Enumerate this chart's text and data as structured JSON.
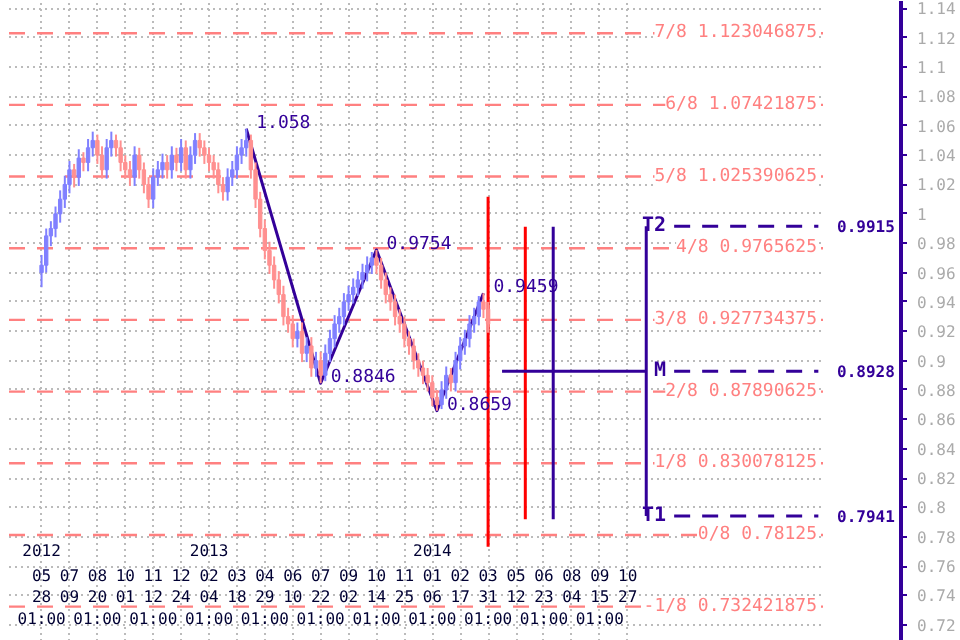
{
  "chart_data": {
    "type": "candlestick",
    "xlim": [
      "2012-04-09",
      "2015-08-17"
    ],
    "x2lim": [
      "2012-04-09",
      "2015-08-17"
    ],
    "ylim": [
      0.709,
      1.145
    ],
    "x2ticks": [
      {
        "value": "2012-05-28T01:00",
        "label": "2012"
      },
      {
        "value": "2013-02-04T01:00",
        "label": "2013"
      },
      {
        "value": "2014-01-06T01:00",
        "label": "2014"
      }
    ],
    "xticks": [
      {
        "value": "2012-05-28T01:00",
        "label": "05\n28\n01:00"
      },
      {
        "value": "2012-07-09T01:00",
        "label": "07\n09"
      },
      {
        "value": "2012-08-20T01:00",
        "label": "08\n20\n01:00"
      },
      {
        "value": "2012-10-01T01:00",
        "label": "10\n01"
      },
      {
        "value": "2012-11-12T01:00",
        "label": "11\n12\n01:00"
      },
      {
        "value": "2012-12-24T01:00",
        "label": "12\n24"
      },
      {
        "value": "2013-02-04T01:00",
        "label": "02\n04\n01:00"
      },
      {
        "value": "2013-03-18T01:00",
        "label": "03\n18"
      },
      {
        "value": "2013-04-29T01:00",
        "label": "04\n29\n01:00"
      },
      {
        "value": "2013-06-10T01:00",
        "label": "06\n10"
      },
      {
        "value": "2013-07-22T01:00",
        "label": "07\n22\n01:00"
      },
      {
        "value": "2013-09-02T01:00",
        "label": "09\n02"
      },
      {
        "value": "2013-10-14T01:00",
        "label": "10\n14\n01:00"
      },
      {
        "value": "2013-11-25T01:00",
        "label": "11\n25"
      },
      {
        "value": "2014-01-06T01:00",
        "label": "01\n06\n01:00"
      },
      {
        "value": "2014-02-17T01:00",
        "label": "02\n17"
      },
      {
        "value": "2014-03-31T01:00",
        "label": "03\n31\n01:00"
      },
      {
        "value": "2014-05-12T01:00",
        "label": "05\n12"
      },
      {
        "value": "2014-06-23T01:00",
        "label": "06\n23\n01:00"
      },
      {
        "value": "2014-08-04T01:00",
        "label": "08\n04"
      },
      {
        "value": "2014-09-15T01:00",
        "label": "09\n15\n01:00"
      },
      {
        "value": "2014-10-27T01:00",
        "label": "10\n27"
      }
    ],
    "yticks": [
      0.72,
      0.74,
      0.76,
      0.78,
      0.8,
      0.82,
      0.84,
      0.86,
      0.88,
      0.9,
      0.92,
      0.94,
      0.96,
      0.98,
      1,
      1.02,
      1.04,
      1.06,
      1.08,
      1.1,
      1.12,
      1.14
    ],
    "grid": true,
    "ref_lines": [
      {
        "axis": "y",
        "value": 1.123046875,
        "label": "7/8 1.123046875",
        "color": "#ff8080",
        "line_style": "dashed"
      },
      {
        "axis": "y",
        "value": 1.07421875,
        "label": "6/8 1.07421875",
        "color": "#ff8080",
        "line_style": "dashed"
      },
      {
        "axis": "y",
        "value": 1.025390625,
        "label": "5/8 1.025390625",
        "color": "#ff8080",
        "line_style": "dashed"
      },
      {
        "axis": "y",
        "value": 0.9765625,
        "label": "4/8 0.9765625",
        "color": "#ff8080",
        "line_style": "dashed"
      },
      {
        "axis": "y",
        "value": 0.927734375,
        "label": "3/8 0.927734375",
        "color": "#ff8080",
        "line_style": "dashed"
      },
      {
        "axis": "y",
        "value": 0.87890625,
        "label": "2/8 0.87890625",
        "color": "#ff8080",
        "line_style": "dashed"
      },
      {
        "axis": "y",
        "value": 0.830078125,
        "label": "1/8 0.830078125",
        "color": "#ff8080",
        "line_style": "dashed"
      },
      {
        "axis": "y",
        "value": 0.78125,
        "label": "0/8 0.78125",
        "color": "#ff8080",
        "line_style": "dashed"
      },
      {
        "axis": "y",
        "value": 0.732421875,
        "label": "-1/8 0.732421875",
        "color": "#ff8080",
        "line_style": "dashed"
      }
    ],
    "x": [
      "2012-05-28",
      "2012-06-04",
      "2012-06-11",
      "2012-06-18",
      "2012-06-25",
      "2012-07-02",
      "2012-07-09",
      "2012-07-16",
      "2012-07-23",
      "2012-07-30",
      "2012-08-06",
      "2012-08-13",
      "2012-08-20",
      "2012-08-27",
      "2012-09-03",
      "2012-09-10",
      "2012-09-17",
      "2012-09-24",
      "2012-10-01",
      "2012-10-08",
      "2012-10-15",
      "2012-10-22",
      "2012-10-29",
      "2012-11-05",
      "2012-11-12",
      "2012-11-19",
      "2012-11-26",
      "2012-12-03",
      "2012-12-10",
      "2012-12-17",
      "2012-12-24",
      "2012-12-31",
      "2013-01-07",
      "2013-01-14",
      "2013-01-21",
      "2013-01-28",
      "2013-02-04",
      "2013-02-11",
      "2013-02-18",
      "2013-02-25",
      "2013-03-04",
      "2013-03-11",
      "2013-03-18",
      "2013-03-25",
      "2013-04-01",
      "2013-04-08",
      "2013-04-15",
      "2013-04-22",
      "2013-04-29",
      "2013-05-06",
      "2013-05-13",
      "2013-05-20",
      "2013-05-27",
      "2013-06-03",
      "2013-06-10",
      "2013-06-17",
      "2013-06-24",
      "2013-07-01",
      "2013-07-08",
      "2013-07-15",
      "2013-07-22",
      "2013-07-29",
      "2013-08-05",
      "2013-08-12",
      "2013-08-19",
      "2013-08-26",
      "2013-09-02",
      "2013-09-09",
      "2013-09-16",
      "2013-09-23",
      "2013-09-30",
      "2013-10-07",
      "2013-10-14",
      "2013-10-21",
      "2013-10-28",
      "2013-11-04",
      "2013-11-11",
      "2013-11-18",
      "2013-11-25",
      "2013-12-02",
      "2013-12-09",
      "2013-12-16",
      "2013-12-23",
      "2013-12-30",
      "2014-01-06",
      "2014-01-13",
      "2014-01-20",
      "2014-01-27",
      "2014-02-03",
      "2014-02-10",
      "2014-02-17",
      "2014-02-24",
      "2014-03-03",
      "2014-03-10",
      "2014-03-17",
      "2014-03-24",
      "2014-03-31"
    ],
    "ohlc": [
      [
        0.96,
        0.972,
        0.95,
        0.965
      ],
      [
        0.965,
        0.99,
        0.96,
        0.985
      ],
      [
        0.985,
        0.995,
        0.978,
        0.99
      ],
      [
        0.99,
        1.005,
        0.984,
        1.0
      ],
      [
        1.0,
        1.016,
        0.994,
        1.01
      ],
      [
        1.01,
        1.026,
        1.004,
        1.02
      ],
      [
        1.02,
        1.036,
        1.014,
        1.03
      ],
      [
        1.03,
        1.034,
        1.018,
        1.025
      ],
      [
        1.025,
        1.044,
        1.019,
        1.038
      ],
      [
        1.038,
        1.042,
        1.029,
        1.035
      ],
      [
        1.035,
        1.051,
        1.029,
        1.045
      ],
      [
        1.045,
        1.056,
        1.039,
        1.05
      ],
      [
        1.05,
        1.054,
        1.034,
        1.04
      ],
      [
        1.04,
        1.046,
        1.024,
        1.03
      ],
      [
        1.03,
        1.051,
        1.024,
        1.045
      ],
      [
        1.045,
        1.056,
        1.039,
        1.05
      ],
      [
        1.05,
        1.054,
        1.039,
        1.045
      ],
      [
        1.045,
        1.05,
        1.029,
        1.035
      ],
      [
        1.035,
        1.04,
        1.024,
        1.03
      ],
      [
        1.03,
        1.036,
        1.019,
        1.025
      ],
      [
        1.025,
        1.046,
        1.019,
        1.04
      ],
      [
        1.04,
        1.045,
        1.024,
        1.03
      ],
      [
        1.03,
        1.035,
        1.014,
        1.02
      ],
      [
        1.02,
        1.025,
        1.004,
        1.01
      ],
      [
        1.01,
        1.031,
        1.004,
        1.025
      ],
      [
        1.025,
        1.036,
        1.019,
        1.03
      ],
      [
        1.03,
        1.041,
        1.024,
        1.035
      ],
      [
        1.035,
        1.04,
        1.024,
        1.03
      ],
      [
        1.03,
        1.046,
        1.024,
        1.04
      ],
      [
        1.04,
        1.045,
        1.029,
        1.035
      ],
      [
        1.035,
        1.051,
        1.029,
        1.045
      ],
      [
        1.045,
        1.05,
        1.024,
        1.03
      ],
      [
        1.03,
        1.046,
        1.024,
        1.04
      ],
      [
        1.04,
        1.055,
        1.034,
        1.05
      ],
      [
        1.05,
        1.055,
        1.039,
        1.045
      ],
      [
        1.045,
        1.05,
        1.034,
        1.04
      ],
      [
        1.04,
        1.045,
        1.029,
        1.035
      ],
      [
        1.035,
        1.04,
        1.024,
        1.03
      ],
      [
        1.03,
        1.035,
        1.014,
        1.02
      ],
      [
        1.02,
        1.025,
        1.009,
        1.015
      ],
      [
        1.015,
        1.031,
        1.009,
        1.025
      ],
      [
        1.025,
        1.036,
        1.019,
        1.03
      ],
      [
        1.03,
        1.046,
        1.024,
        1.04
      ],
      [
        1.04,
        1.051,
        1.034,
        1.045
      ],
      [
        1.045,
        1.058,
        1.039,
        1.05
      ],
      [
        1.05,
        1.054,
        1.024,
        1.03
      ],
      [
        1.03,
        1.035,
        1.004,
        1.01
      ],
      [
        1.01,
        1.015,
        0.984,
        0.99
      ],
      [
        0.99,
        0.996,
        0.969,
        0.975
      ],
      [
        0.975,
        0.981,
        0.959,
        0.965
      ],
      [
        0.965,
        0.971,
        0.949,
        0.955
      ],
      [
        0.955,
        0.961,
        0.939,
        0.945
      ],
      [
        0.945,
        0.951,
        0.924,
        0.93
      ],
      [
        0.93,
        0.936,
        0.919,
        0.925
      ],
      [
        0.925,
        0.931,
        0.909,
        0.915
      ],
      [
        0.915,
        0.926,
        0.909,
        0.92
      ],
      [
        0.92,
        0.926,
        0.899,
        0.905
      ],
      [
        0.905,
        0.916,
        0.899,
        0.91
      ],
      [
        0.91,
        0.916,
        0.889,
        0.895
      ],
      [
        0.895,
        0.906,
        0.889,
        0.9
      ],
      [
        0.9,
        0.906,
        0.8846,
        0.89
      ],
      [
        0.89,
        0.911,
        0.886,
        0.905
      ],
      [
        0.905,
        0.921,
        0.899,
        0.915
      ],
      [
        0.915,
        0.931,
        0.909,
        0.925
      ],
      [
        0.925,
        0.936,
        0.919,
        0.93
      ],
      [
        0.93,
        0.946,
        0.924,
        0.94
      ],
      [
        0.94,
        0.951,
        0.934,
        0.945
      ],
      [
        0.945,
        0.956,
        0.939,
        0.95
      ],
      [
        0.95,
        0.961,
        0.944,
        0.955
      ],
      [
        0.955,
        0.966,
        0.949,
        0.96
      ],
      [
        0.96,
        0.971,
        0.954,
        0.965
      ],
      [
        0.965,
        0.974,
        0.959,
        0.97
      ],
      [
        0.97,
        0.9754,
        0.959,
        0.965
      ],
      [
        0.965,
        0.97,
        0.949,
        0.955
      ],
      [
        0.955,
        0.96,
        0.939,
        0.945
      ],
      [
        0.945,
        0.95,
        0.934,
        0.94
      ],
      [
        0.94,
        0.945,
        0.924,
        0.93
      ],
      [
        0.93,
        0.935,
        0.919,
        0.925
      ],
      [
        0.925,
        0.93,
        0.909,
        0.915
      ],
      [
        0.915,
        0.92,
        0.904,
        0.91
      ],
      [
        0.91,
        0.915,
        0.894,
        0.9
      ],
      [
        0.9,
        0.905,
        0.889,
        0.895
      ],
      [
        0.895,
        0.9,
        0.884,
        0.89
      ],
      [
        0.89,
        0.895,
        0.879,
        0.885
      ],
      [
        0.885,
        0.89,
        0.869,
        0.875
      ],
      [
        0.875,
        0.88,
        0.8659,
        0.87
      ],
      [
        0.87,
        0.886,
        0.867,
        0.88
      ],
      [
        0.88,
        0.896,
        0.874,
        0.89
      ],
      [
        0.89,
        0.895,
        0.879,
        0.885
      ],
      [
        0.885,
        0.906,
        0.879,
        0.9
      ],
      [
        0.9,
        0.916,
        0.894,
        0.91
      ],
      [
        0.91,
        0.921,
        0.904,
        0.915
      ],
      [
        0.915,
        0.931,
        0.909,
        0.925
      ],
      [
        0.925,
        0.936,
        0.919,
        0.93
      ],
      [
        0.93,
        0.944,
        0.924,
        0.94
      ],
      [
        0.94,
        0.9459,
        0.929,
        0.935
      ],
      [
        0.935,
        0.94,
        0.919,
        0.925
      ]
    ],
    "colors": [
      "#8080ff",
      "#8080ff",
      "#8080ff",
      "#8080ff",
      "#8080ff",
      "#8080ff",
      "#8080ff",
      "#ff9090",
      "#8080ff",
      "#ff9090",
      "#8080ff",
      "#8080ff",
      "#ff9090",
      "#ff9090",
      "#8080ff",
      "#8080ff",
      "#ff9090",
      "#ff9090",
      "#ff9090",
      "#ff9090",
      "#8080ff",
      "#ff9090",
      "#ff9090",
      "#ff9090",
      "#8080ff",
      "#8080ff",
      "#8080ff",
      "#ff9090",
      "#8080ff",
      "#ff9090",
      "#8080ff",
      "#ff9090",
      "#8080ff",
      "#8080ff",
      "#ff9090",
      "#ff9090",
      "#ff9090",
      "#ff9090",
      "#ff9090",
      "#ff9090",
      "#8080ff",
      "#8080ff",
      "#8080ff",
      "#8080ff",
      "#8080ff",
      "#ff9090",
      "#ff9090",
      "#ff9090",
      "#ff9090",
      "#ff9090",
      "#ff9090",
      "#ff9090",
      "#ff9090",
      "#ff9090",
      "#ff9090",
      "#8080ff",
      "#ff9090",
      "#8080ff",
      "#ff9090",
      "#8080ff",
      "#ff9090",
      "#8080ff",
      "#8080ff",
      "#8080ff",
      "#8080ff",
      "#8080ff",
      "#8080ff",
      "#8080ff",
      "#8080ff",
      "#8080ff",
      "#8080ff",
      "#8080ff",
      "#ff9090",
      "#ff9090",
      "#ff9090",
      "#ff9090",
      "#ff9090",
      "#ff9090",
      "#ff9090",
      "#ff9090",
      "#ff9090",
      "#ff9090",
      "#ff9090",
      "#ff9090",
      "#ff9090",
      "#ff9090",
      "#8080ff",
      "#8080ff",
      "#ff9090",
      "#8080ff",
      "#8080ff",
      "#8080ff",
      "#8080ff",
      "#8080ff",
      "#8080ff",
      "#ff9090",
      "#ff9090"
    ],
    "series": [
      {
        "type": "line",
        "color": "#330099",
        "x": [
          "2013-04-01",
          "2013-07-22",
          "2013-10-14",
          "2014-01-13",
          "2014-03-24"
        ],
        "values": [
          1.058,
          0.8846,
          0.9754,
          0.8659,
          0.9459
        ]
      },
      {
        "type": "line",
        "color": "#ff0000",
        "x": [
          "2014-03-31",
          "2014-03-31"
        ],
        "values": [
          1.0117,
          0.7732
        ]
      },
      {
        "type": "line",
        "color": "#ff0000",
        "x": [
          "2014-05-26",
          "2014-05-26"
        ],
        "values": [
          0.9912,
          0.792
        ]
      },
      {
        "type": "line",
        "color": "#330099",
        "x": [
          "2014-07-07",
          "2014-07-07"
        ],
        "values": [
          0.9912,
          0.792
        ]
      },
      {
        "type": "line",
        "color": "#330099",
        "x": [
          "2014-11-24",
          "2014-11-24"
        ],
        "values": [
          0.9915,
          0.7941
        ]
      },
      {
        "type": "line",
        "color": "#330099",
        "x": [
          "2014-04-21",
          "2014-11-24"
        ],
        "values": [
          0.8928,
          0.8928
        ]
      },
      {
        "type": "line",
        "name": "T2",
        "color": "#330099",
        "line_style": "dashed",
        "x": [
          "2015-01-05",
          "2015-08-10"
        ],
        "values": [
          0.9915,
          0.9915
        ],
        "value_labels": [
          null,
          "0.9915"
        ]
      },
      {
        "type": "line",
        "name": "M",
        "color": "#330099",
        "line_style": "dashed",
        "x": [
          "2015-01-05",
          "2015-08-10"
        ],
        "values": [
          0.8928,
          0.8928
        ],
        "value_labels": [
          null,
          "0.8928"
        ]
      },
      {
        "type": "line",
        "name": "T1",
        "color": "#330099",
        "line_style": "dashed",
        "x": [
          "2015-01-05",
          "2015-08-10"
        ],
        "values": [
          0.7941,
          0.7941
        ],
        "value_labels": [
          null,
          "0.7941"
        ]
      }
    ],
    "annotations": [
      {
        "text": "1.058",
        "x": "2013-04-01",
        "y": 1.058
      },
      {
        "text": "0.8846",
        "x": "2013-07-22",
        "y": 0.8846
      },
      {
        "text": "0.9754",
        "x": "2013-10-14",
        "y": 0.9754
      },
      {
        "text": "0.8659",
        "x": "2014-01-13",
        "y": 0.8659
      },
      {
        "text": "0.9459",
        "x": "2014-03-24",
        "y": 0.9459
      }
    ]
  }
}
